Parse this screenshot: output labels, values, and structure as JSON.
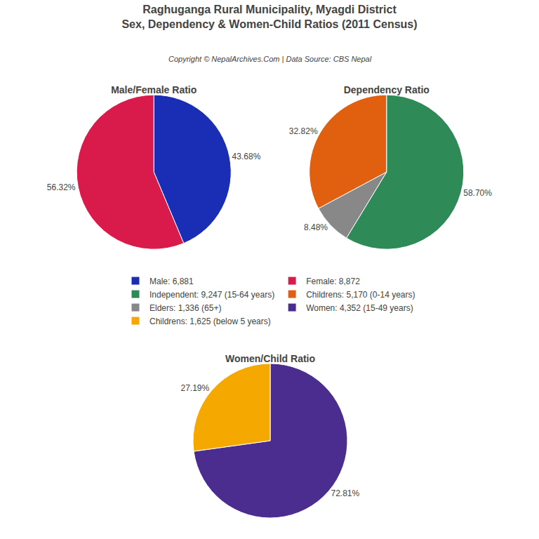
{
  "title": "Raghuganga Rural Municipality, Myagdi District",
  "subtitle": "Sex, Dependency & Women-Child Ratios (2011 Census)",
  "annotations": [
    "Copyright © NepalArchives.Com | Data Source: CBS Nepal"
  ],
  "legend": "center",
  "chart_data": [
    {
      "type": "pie",
      "title": "Male/Female Ratio",
      "categories": [
        "Male: 6,881",
        "Female: 8,872"
      ],
      "values": [
        43.68,
        56.32
      ],
      "value_labels": [
        "43.68%",
        "56.32%"
      ],
      "colors": [
        "#1a2db5",
        "#d81b4a"
      ],
      "data_labels": true
    },
    {
      "type": "pie",
      "title": "Dependency Ratio",
      "categories": [
        "Independent: 9,247 (15-64 years)",
        "Childrens: 5,170 (0-14 years)",
        "Elders: 1,336 (65+)"
      ],
      "values": [
        58.7,
        32.82,
        8.48
      ],
      "value_labels": [
        "58.70%",
        "32.82%",
        "8.48%"
      ],
      "colors": [
        "#2e8b57",
        "#e06010",
        "#888888"
      ],
      "data_labels": true
    },
    {
      "type": "pie",
      "title": "Women/Child Ratio",
      "categories": [
        "Women: 4,352 (15-49 years)",
        "Childrens: 1,625 (below 5 years)"
      ],
      "values": [
        72.81,
        27.19
      ],
      "value_labels": [
        "72.81%",
        "27.19%"
      ],
      "colors": [
        "#4b2d8f",
        "#f5a800"
      ],
      "data_labels": true
    }
  ]
}
